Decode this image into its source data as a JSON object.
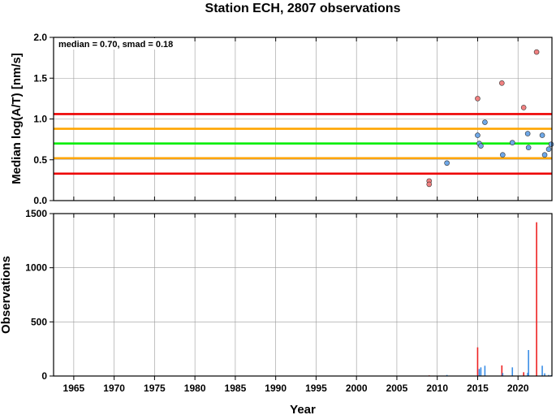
{
  "chart_data": [
    {
      "type": "scatter",
      "title": "Station ECH, 2807 observations",
      "ylabel": "Median log(A/T) [nm/s]",
      "annotation": "median = 0.70, smad = 0.18",
      "xlim": [
        1962.5,
        2024.2
      ],
      "ylim": [
        0,
        2
      ],
      "y_ticks": [
        "0.0",
        "0.5",
        "1.0",
        "1.5",
        "2.0"
      ],
      "grid": true,
      "reference_lines": [
        {
          "y": 1.06,
          "color": "#ee0000"
        },
        {
          "y": 0.88,
          "color": "#ffa500"
        },
        {
          "y": 0.7,
          "color": "#00ee00"
        },
        {
          "y": 0.52,
          "color": "#ffa500"
        },
        {
          "y": 0.33,
          "color": "#ee0000"
        }
      ],
      "series": [
        {
          "color": "#f08080",
          "points": [
            [
              2009.0,
              0.24
            ],
            [
              2009.0,
              0.2
            ],
            [
              2015.0,
              1.25
            ],
            [
              2018.0,
              1.44
            ],
            [
              2020.7,
              1.14
            ],
            [
              2022.3,
              1.82
            ]
          ]
        },
        {
          "color": "#6fa8e8",
          "points": [
            [
              2011.2,
              0.46
            ],
            [
              2015.0,
              0.8
            ],
            [
              2015.2,
              0.7
            ],
            [
              2015.4,
              0.67
            ],
            [
              2015.9,
              0.96
            ],
            [
              2018.1,
              0.56
            ],
            [
              2019.3,
              0.71
            ],
            [
              2021.2,
              0.82
            ],
            [
              2021.3,
              0.65
            ],
            [
              2023.0,
              0.8
            ],
            [
              2023.3,
              0.56
            ],
            [
              2023.8,
              0.63
            ],
            [
              2024.1,
              0.69
            ]
          ]
        }
      ]
    },
    {
      "type": "bar",
      "xlabel": "Year",
      "ylabel": "Observations",
      "xlim": [
        1962.5,
        2024.2
      ],
      "ylim": [
        0,
        1500
      ],
      "x_ticks": [
        "1965",
        "1970",
        "1975",
        "1980",
        "1985",
        "1990",
        "1995",
        "2000",
        "2005",
        "2010",
        "2015",
        "2020"
      ],
      "y_ticks": [
        "0",
        "500",
        "1000",
        "1500"
      ],
      "grid": true,
      "series": [
        {
          "color": "#ee2222",
          "bars": [
            [
              2009.0,
              6
            ],
            [
              2015.0,
              265
            ],
            [
              2018.0,
              98
            ],
            [
              2020.7,
              35
            ],
            [
              2022.3,
              1420
            ]
          ]
        },
        {
          "color": "#3a8ee6",
          "bars": [
            [
              2011.2,
              10
            ],
            [
              2015.2,
              65
            ],
            [
              2015.4,
              80
            ],
            [
              2015.9,
              95
            ],
            [
              2018.1,
              28
            ],
            [
              2019.3,
              80
            ],
            [
              2021.2,
              30
            ],
            [
              2021.3,
              240
            ],
            [
              2023.0,
              95
            ],
            [
              2023.3,
              25
            ],
            [
              2023.8,
              10
            ],
            [
              2024.1,
              8
            ]
          ]
        }
      ]
    }
  ]
}
